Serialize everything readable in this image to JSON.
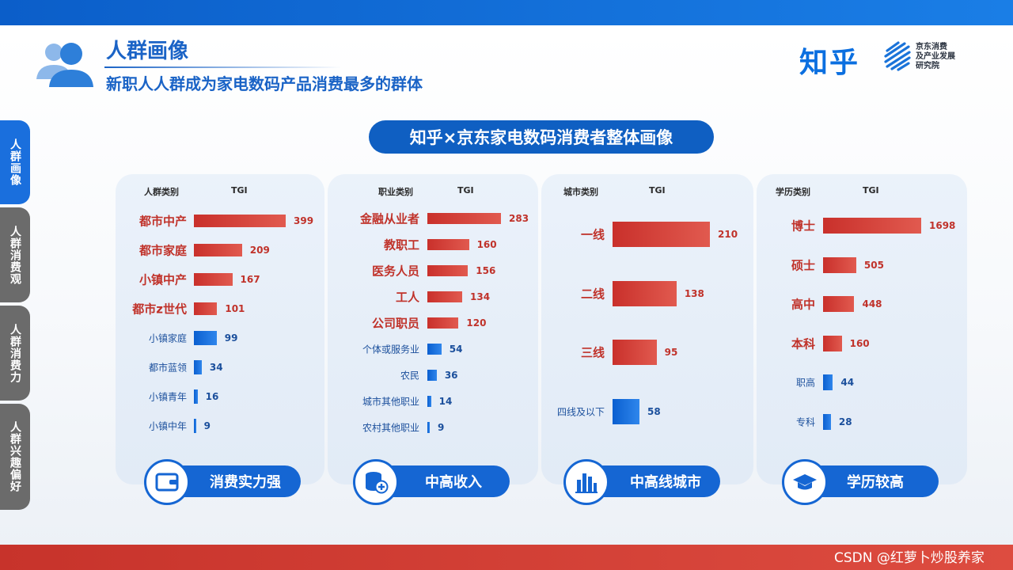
{
  "header": {
    "title": "人群画像",
    "subtitle": "新职人人群成为家电数码产品消费最多的群体"
  },
  "logos": {
    "zhihu": "知乎",
    "jd_line1": "京东消费",
    "jd_line2": "及产业发展",
    "jd_line3": "研究院"
  },
  "side_tabs": [
    {
      "label": "人群画像",
      "active": true
    },
    {
      "label": "人群消费观",
      "active": false
    },
    {
      "label": "人群消费力",
      "active": false
    },
    {
      "label": "人群兴趣偏好",
      "active": false
    }
  ],
  "main_title": "知乎×京东家电数码消费者整体画像",
  "chart_data": [
    {
      "type": "bar",
      "category_header": "人群类别",
      "value_header": "TGI",
      "categories": [
        "都市中产",
        "都市家庭",
        "小镇中产",
        "都市z世代",
        "小镇家庭",
        "都市蓝领",
        "小镇青年",
        "小镇中年"
      ],
      "values": [
        399,
        209,
        167,
        101,
        99,
        34,
        16,
        9
      ],
      "highlight": [
        true,
        true,
        true,
        true,
        false,
        false,
        false,
        false
      ],
      "badge": "消费实力强"
    },
    {
      "type": "bar",
      "category_header": "职业类别",
      "value_header": "TGI",
      "categories": [
        "金融从业者",
        "教职工",
        "医务人员",
        "工人",
        "公司职员",
        "个体或服务业",
        "农民",
        "城市其他职业",
        "农村其他职业"
      ],
      "values": [
        283,
        160,
        156,
        134,
        120,
        54,
        36,
        14,
        9
      ],
      "highlight": [
        true,
        true,
        true,
        true,
        true,
        false,
        false,
        false,
        false
      ],
      "badge": "中高收入"
    },
    {
      "type": "bar",
      "category_header": "城市类别",
      "value_header": "TGI",
      "categories": [
        "一线",
        "二线",
        "三线",
        "四线及以下"
      ],
      "values": [
        210,
        138,
        95,
        58
      ],
      "highlight": [
        true,
        true,
        true,
        false
      ],
      "badge": "中高线城市"
    },
    {
      "type": "bar",
      "category_header": "学历类别",
      "value_header": "TGI",
      "categories": [
        "博士",
        "硕士",
        "高中",
        "本科",
        "职高",
        "专科"
      ],
      "values": [
        1698,
        505,
        448,
        160,
        44,
        28
      ],
      "highlight": [
        true,
        true,
        true,
        true,
        false,
        false
      ],
      "badge": "学历较高"
    }
  ],
  "watermark": "CSDN @红萝卜炒股养家",
  "colors": {
    "primary_blue": "#1566d3",
    "highlight_red": "#c9302b",
    "low_blue": "#0a5fd0",
    "inactive_tab": "#6b6b6b"
  }
}
